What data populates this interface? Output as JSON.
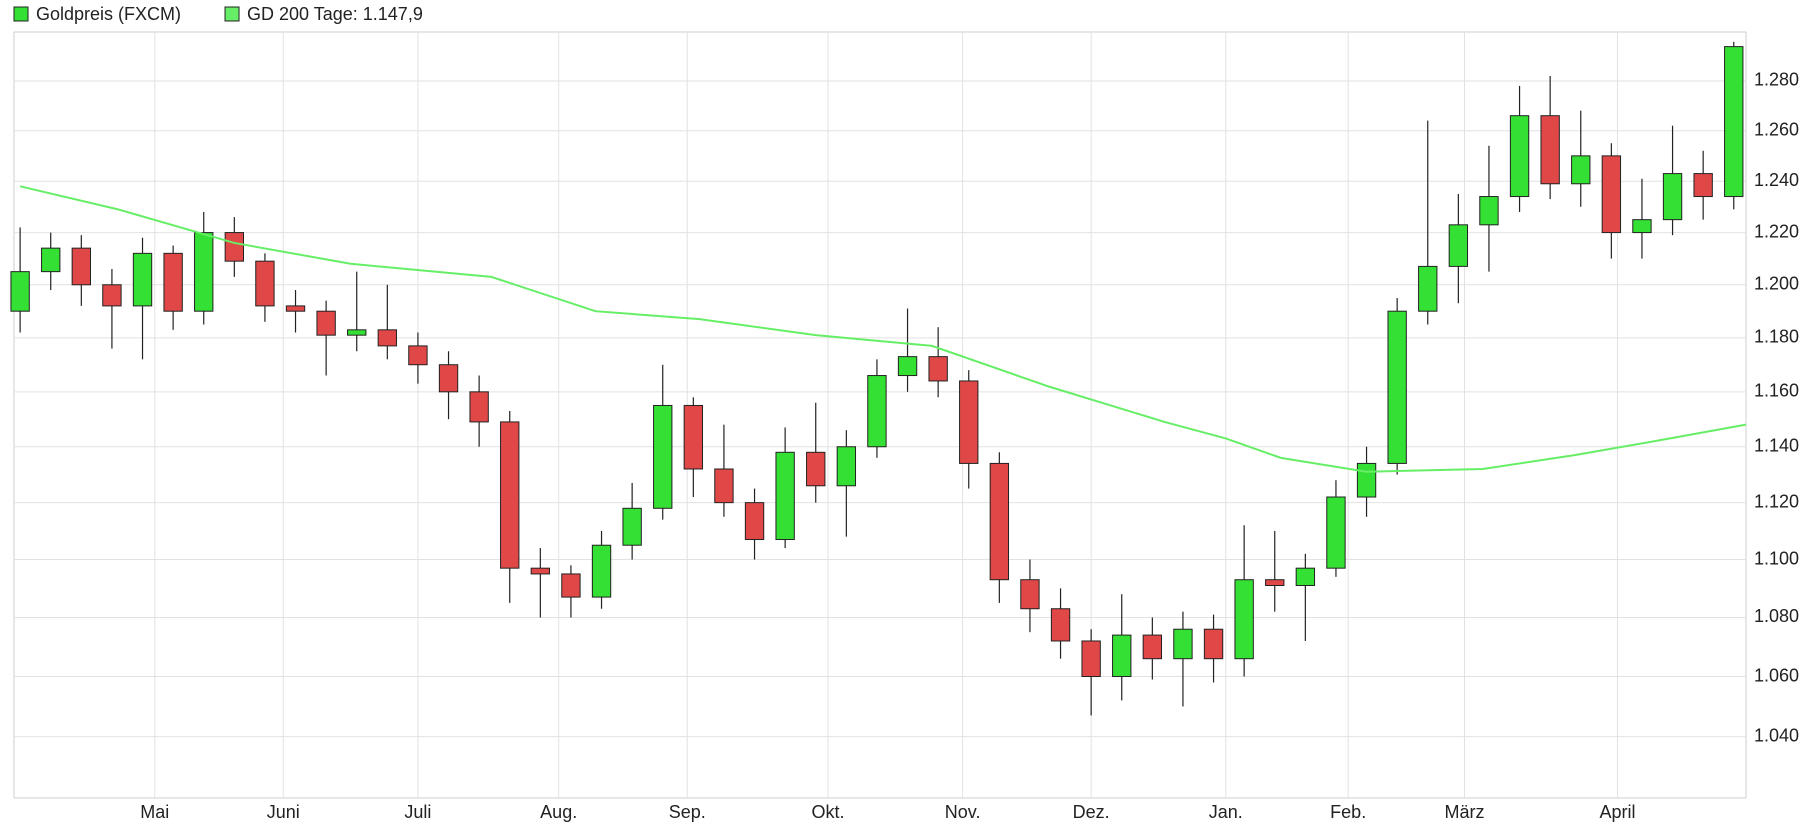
{
  "chart_data": {
    "type": "candlestick",
    "log_scale": true,
    "grid": true,
    "legend": "top-left",
    "xlim": [
      0,
      283
    ],
    "xticks": [
      {
        "value": 23,
        "label": "Mai"
      },
      {
        "value": 44,
        "label": "Juni"
      },
      {
        "value": 66,
        "label": "Juli"
      },
      {
        "value": 89,
        "label": "Aug."
      },
      {
        "value": 110,
        "label": "Sep."
      },
      {
        "value": 133,
        "label": "Okt."
      },
      {
        "value": 155,
        "label": "Nov."
      },
      {
        "value": 176,
        "label": "Dez."
      },
      {
        "value": 198,
        "label": "Jan."
      },
      {
        "value": 218,
        "label": "Feb."
      },
      {
        "value": 237,
        "label": "März"
      },
      {
        "value": 262,
        "label": "April"
      }
    ],
    "ylim": [
      1.02,
      1.3
    ],
    "yticks": [
      {
        "value": 1.04,
        "label": "1.040"
      },
      {
        "value": 1.06,
        "label": "1.060"
      },
      {
        "value": 1.08,
        "label": "1.080"
      },
      {
        "value": 1.1,
        "label": "1.100"
      },
      {
        "value": 1.12,
        "label": "1.120"
      },
      {
        "value": 1.14,
        "label": "1.140"
      },
      {
        "value": 1.16,
        "label": "1.160"
      },
      {
        "value": 1.18,
        "label": "1.180"
      },
      {
        "value": 1.2,
        "label": "1.200"
      },
      {
        "value": 1.22,
        "label": "1.220"
      },
      {
        "value": 1.24,
        "label": "1.240"
      },
      {
        "value": 1.26,
        "label": "1.260"
      },
      {
        "value": 1.28,
        "label": "1.280"
      }
    ],
    "series": [
      {
        "name": "Goldpreis (FXCM)",
        "color": "#33e033",
        "down_color": "#e04848",
        "x": [
          1,
          6,
          11,
          16,
          21,
          26,
          31,
          36,
          41,
          46,
          51,
          56,
          61,
          66,
          71,
          76,
          81,
          86,
          91,
          96,
          101,
          106,
          111,
          116,
          121,
          126,
          131,
          136,
          141,
          146,
          151,
          156,
          161,
          166,
          171,
          176,
          181,
          186,
          191,
          196,
          201,
          206,
          211,
          216,
          221,
          226,
          231,
          236,
          241,
          246,
          251,
          256,
          261,
          266,
          271,
          276,
          281
        ],
        "open": [
          1.19,
          1.205,
          1.214,
          1.2,
          1.192,
          1.212,
          1.19,
          1.22,
          1.209,
          1.192,
          1.19,
          1.181,
          1.183,
          1.177,
          1.17,
          1.16,
          1.149,
          1.097,
          1.095,
          1.087,
          1.105,
          1.118,
          1.155,
          1.132,
          1.12,
          1.107,
          1.138,
          1.126,
          1.14,
          1.166,
          1.173,
          1.164,
          1.134,
          1.093,
          1.083,
          1.072,
          1.06,
          1.074,
          1.066,
          1.076,
          1.066,
          1.093,
          1.091,
          1.097,
          1.122,
          1.134,
          1.19,
          1.207,
          1.223,
          1.234,
          1.266,
          1.239,
          1.25,
          1.22,
          1.225,
          1.243,
          1.234
        ],
        "high": [
          1.222,
          1.22,
          1.219,
          1.206,
          1.218,
          1.215,
          1.228,
          1.226,
          1.212,
          1.198,
          1.194,
          1.205,
          1.2,
          1.182,
          1.175,
          1.166,
          1.153,
          1.104,
          1.098,
          1.11,
          1.127,
          1.17,
          1.158,
          1.148,
          1.125,
          1.147,
          1.156,
          1.146,
          1.172,
          1.191,
          1.184,
          1.168,
          1.138,
          1.1,
          1.09,
          1.076,
          1.088,
          1.08,
          1.082,
          1.081,
          1.112,
          1.11,
          1.102,
          1.128,
          1.14,
          1.195,
          1.264,
          1.235,
          1.254,
          1.278,
          1.282,
          1.268,
          1.255,
          1.241,
          1.262,
          1.252,
          1.296
        ],
        "low": [
          1.182,
          1.198,
          1.192,
          1.176,
          1.172,
          1.183,
          1.185,
          1.203,
          1.186,
          1.182,
          1.166,
          1.175,
          1.172,
          1.163,
          1.15,
          1.14,
          1.085,
          1.08,
          1.08,
          1.083,
          1.1,
          1.114,
          1.122,
          1.115,
          1.1,
          1.104,
          1.12,
          1.108,
          1.136,
          1.16,
          1.158,
          1.125,
          1.085,
          1.075,
          1.066,
          1.047,
          1.052,
          1.059,
          1.05,
          1.058,
          1.06,
          1.082,
          1.072,
          1.094,
          1.115,
          1.13,
          1.185,
          1.193,
          1.205,
          1.228,
          1.233,
          1.23,
          1.21,
          1.21,
          1.219,
          1.225,
          1.229
        ],
        "close": [
          1.205,
          1.214,
          1.2,
          1.192,
          1.212,
          1.19,
          1.22,
          1.209,
          1.192,
          1.19,
          1.181,
          1.183,
          1.177,
          1.17,
          1.16,
          1.149,
          1.097,
          1.095,
          1.087,
          1.105,
          1.118,
          1.155,
          1.132,
          1.12,
          1.107,
          1.138,
          1.126,
          1.14,
          1.166,
          1.173,
          1.164,
          1.134,
          1.093,
          1.083,
          1.072,
          1.06,
          1.074,
          1.066,
          1.076,
          1.066,
          1.093,
          1.091,
          1.097,
          1.122,
          1.134,
          1.19,
          1.207,
          1.223,
          1.234,
          1.266,
          1.239,
          1.25,
          1.22,
          1.225,
          1.243,
          1.234,
          1.294
        ]
      },
      {
        "name": "GD 200 Tage: 1.147,9",
        "type": "line",
        "color": "#66ee66",
        "x": [
          1,
          17,
          36,
          55,
          78,
          95,
          112,
          131,
          150,
          169,
          188,
          198,
          207,
          221,
          240,
          255,
          268,
          283
        ],
        "values": [
          1.238,
          1.229,
          1.216,
          1.208,
          1.203,
          1.19,
          1.187,
          1.181,
          1.177,
          1.162,
          1.149,
          1.143,
          1.136,
          1.131,
          1.132,
          1.137,
          1.142,
          1.148
        ]
      }
    ]
  }
}
